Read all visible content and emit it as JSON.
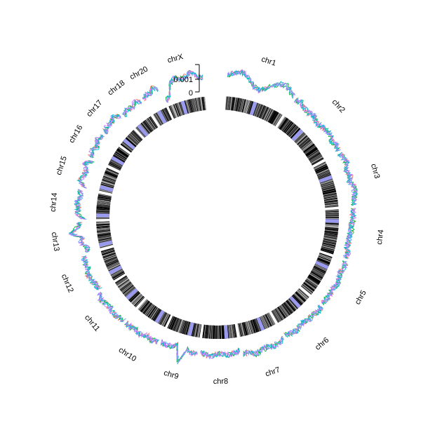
{
  "chart_data": {
    "type": "circos",
    "chromosomes": [
      "chr1",
      "chr2",
      "chr3",
      "chr4",
      "chr5",
      "chr6",
      "chr7",
      "chr8",
      "chr9",
      "chr10",
      "chr11",
      "chr12",
      "chr13",
      "chr14",
      "chr15",
      "chr16",
      "chr17",
      "chr18",
      "chr20",
      "chrX"
    ],
    "chromosome_lengths_mb": [
      249,
      243,
      198,
      190,
      181,
      171,
      159,
      146,
      141,
      135,
      135,
      133,
      114,
      107,
      102,
      90,
      83,
      80,
      64,
      156
    ],
    "y_axis": {
      "ticks": [
        "0",
        "0.001"
      ],
      "range": [
        0,
        0.0013
      ]
    },
    "series": [
      {
        "color": "#F8766D"
      },
      {
        "color": "#00BA38"
      },
      {
        "color": "#619CFF"
      },
      {
        "color": "#00BFC4"
      },
      {
        "color": "#C77CFF"
      }
    ],
    "ideogram_colors": {
      "band": "#000000",
      "centromere": "#9999EE"
    },
    "centromere_fraction": [
      0.5,
      0.38,
      0.36,
      0.26,
      0.27,
      0.35,
      0.37,
      0.31,
      0.31,
      0.3,
      0.4,
      0.27,
      0.14,
      0.15,
      0.17,
      0.41,
      0.3,
      0.2,
      0.45,
      0.39
    ],
    "chromosome_profiles": [
      [
        0.62,
        0.7,
        0.8,
        0.75,
        0.55,
        0.35,
        0.3,
        0.45,
        0.65,
        0.8,
        0.85,
        0.75,
        0.6
      ],
      [
        0.55,
        0.62,
        0.5,
        0.48,
        0.52,
        0.4,
        0.45,
        0.5,
        0.55,
        0.42,
        0.5,
        0.45
      ],
      [
        0.45,
        0.5,
        0.55,
        0.42,
        0.5,
        0.4,
        0.55,
        0.5,
        0.45,
        0.42
      ],
      [
        0.4,
        0.35,
        0.38,
        0.3,
        0.32,
        0.28,
        0.3,
        0.25,
        0.35,
        0.3
      ],
      [
        0.35,
        0.4,
        0.32,
        0.38,
        0.42,
        0.36,
        0.4,
        0.38,
        0.35
      ],
      [
        0.4,
        0.45,
        0.38,
        0.42,
        0.36,
        0.4,
        0.45,
        0.42,
        0.38
      ],
      [
        0.45,
        0.5,
        0.55,
        0.48,
        0.52,
        0.6,
        0.45,
        0.5
      ],
      [
        0.35,
        0.4,
        0.45,
        0.42,
        0.38,
        0.5,
        0.45,
        0.4
      ],
      [
        0.4,
        0.45,
        0.35,
        0.9,
        0.3,
        0.4,
        0.45,
        0.4
      ],
      [
        0.45,
        0.5,
        0.42,
        0.55,
        0.48,
        0.52,
        0.5
      ],
      [
        0.5,
        0.55,
        0.6,
        0.52,
        0.58,
        0.62,
        0.55
      ],
      [
        0.45,
        0.5,
        0.55,
        0.6,
        0.48,
        0.52,
        0.5
      ],
      [
        0.35,
        0.3,
        0.5,
        0.4,
        0.8,
        0.55,
        0.45
      ],
      [
        0.3,
        0.55,
        0.5,
        0.6,
        0.45,
        0.55
      ],
      [
        0.4,
        0.6,
        0.55,
        0.5,
        0.65,
        0.45
      ],
      [
        0.55,
        0.6,
        0.5,
        0.65,
        0.55
      ],
      [
        0.55,
        0.65,
        0.6,
        0.7,
        0.55
      ],
      [
        0.45,
        0.55,
        0.5,
        0.6,
        0.5
      ],
      [
        0.5,
        0.6,
        0.55,
        0.7,
        0.6
      ],
      [
        0.05,
        0.2,
        0.6,
        0.75,
        0.65,
        0.7,
        0.8,
        0.6,
        0.55
      ]
    ]
  }
}
